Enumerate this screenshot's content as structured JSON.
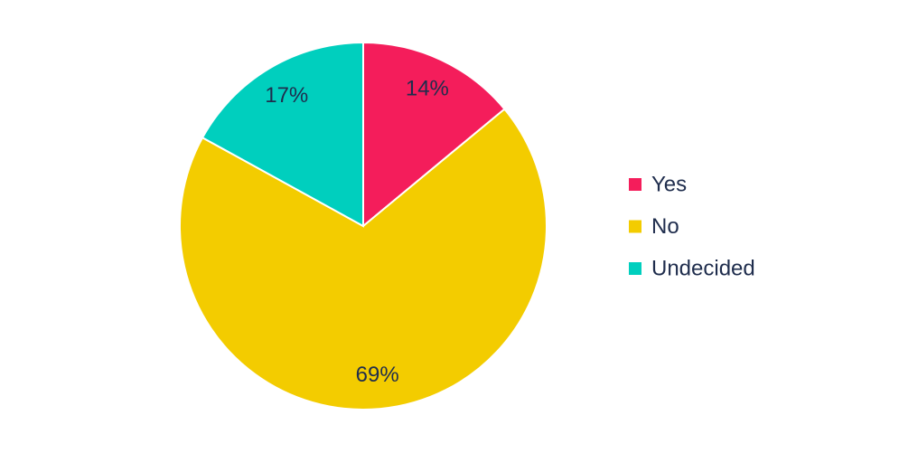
{
  "chart_data": {
    "type": "pie",
    "categories": [
      "Yes",
      "No",
      "Undecided"
    ],
    "values": [
      14,
      69,
      17
    ],
    "value_labels": [
      "14%",
      "69%",
      "17%"
    ],
    "colors": [
      "#f41d5b",
      "#f3cc00",
      "#00cfbe"
    ],
    "legend": "right"
  }
}
